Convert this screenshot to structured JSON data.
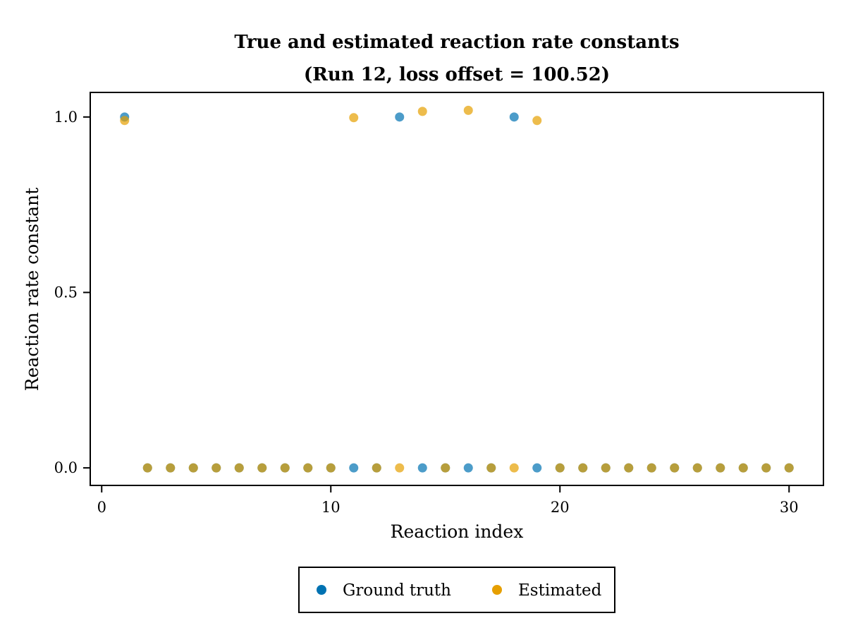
{
  "chart_data": {
    "type": "scatter",
    "title_line1": "True and estimated reaction rate constants",
    "title_line2": "(Run 12, loss offset = 100.52)",
    "xlabel": "Reaction index",
    "ylabel": "Reaction rate constant",
    "xlim": [
      -0.5,
      31.5
    ],
    "ylim": [
      -0.05,
      1.07
    ],
    "xticks": [
      0,
      10,
      20,
      30
    ],
    "xtick_labels": [
      "0",
      "10",
      "20",
      "30"
    ],
    "yticks": [
      0.0,
      0.5,
      1.0
    ],
    "ytick_labels": [
      "0.0",
      "0.5",
      "1.0"
    ],
    "grid": false,
    "legend_position": "bottom-center, outside plot",
    "series": [
      {
        "name": "Ground truth",
        "color": "#0072B2",
        "x": [
          1,
          2,
          3,
          4,
          5,
          6,
          7,
          8,
          9,
          10,
          11,
          12,
          13,
          14,
          15,
          16,
          17,
          18,
          19,
          20,
          21,
          22,
          23,
          24,
          25,
          26,
          27,
          28,
          29,
          30
        ],
        "y": [
          1.0,
          0.0,
          0.0,
          0.0,
          0.0,
          0.0,
          0.0,
          0.0,
          0.0,
          0.0,
          0.0,
          0.0,
          1.0,
          0.0,
          0.0,
          0.0,
          0.0,
          1.0,
          0.0,
          0.0,
          0.0,
          0.0,
          0.0,
          0.0,
          0.0,
          0.0,
          0.0,
          0.0,
          0.0,
          0.0
        ]
      },
      {
        "name": "Estimated",
        "color": "#E69F00",
        "x": [
          1,
          2,
          3,
          4,
          5,
          6,
          7,
          8,
          9,
          10,
          11,
          12,
          13,
          14,
          15,
          16,
          17,
          18,
          19,
          20,
          21,
          22,
          23,
          24,
          25,
          26,
          27,
          28,
          29,
          30
        ],
        "y": [
          0.99,
          0.0,
          0.0,
          0.0,
          0.0,
          0.0,
          0.0,
          0.0,
          0.0,
          0.0,
          0.998,
          0.0,
          0.0,
          1.016,
          0.0,
          1.019,
          0.0,
          0.0,
          0.99,
          0.0,
          0.0,
          0.0,
          0.0,
          0.0,
          0.0,
          0.0,
          0.0,
          0.0,
          0.0,
          0.0
        ]
      }
    ]
  }
}
